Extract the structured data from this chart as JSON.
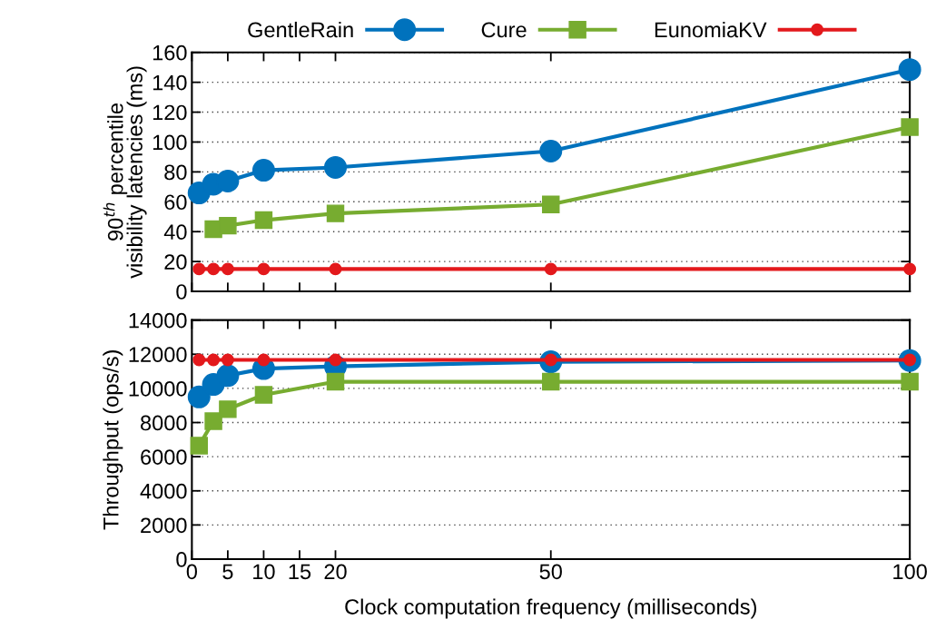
{
  "chart_data": [
    {
      "type": "line",
      "ylabel": "90$^{th}$ percentile\nvisibility latencies (ms)",
      "x": [
        1,
        3,
        5,
        10,
        20,
        50,
        100
      ],
      "xlim": [
        0,
        100
      ],
      "xticks": [
        0,
        5,
        10,
        15,
        20,
        50,
        100
      ],
      "ylim": [
        0,
        160
      ],
      "yticks": [
        0,
        20,
        40,
        60,
        80,
        100,
        120,
        140,
        160
      ],
      "tick_labels": "y",
      "grid": "y",
      "legend": "top",
      "line_style": "solid",
      "series": [
        {
          "name": "GentleRain",
          "color": "#0072bd",
          "marker": "circle",
          "values": [
            65.9,
            71.8,
            73.9,
            81.1,
            83,
            93.9,
            148.5
          ]
        },
        {
          "name": "Cure",
          "color": "#77ac30",
          "marker": "square",
          "values": [
            null,
            41.7,
            44,
            47.7,
            52.2,
            58.2,
            110
          ]
        },
        {
          "name": "EunomiaKV",
          "color": "#e3191c",
          "marker": "circle",
          "values": [
            15,
            15,
            15,
            15,
            15,
            15,
            15
          ]
        }
      ]
    },
    {
      "type": "line",
      "ylabel": "Throughput (ops/s)",
      "xlabel": "Clock computation frequency (milliseconds)",
      "x": [
        1,
        3,
        5,
        10,
        20,
        50,
        100
      ],
      "xlim": [
        0,
        100
      ],
      "xticks": [
        0,
        5,
        10,
        15,
        20,
        50,
        100
      ],
      "ylim": [
        0,
        14000
      ],
      "yticks": [
        0,
        2000,
        4000,
        6000,
        8000,
        10000,
        12000,
        14000
      ],
      "grid": "y",
      "line_style": "solid",
      "series": [
        {
          "color": "#0072bd",
          "marker": "circle",
          "values": [
            9500,
            10230,
            10750,
            11160,
            11290,
            11560,
            11630
          ]
        },
        {
          "color": "#77ac30",
          "marker": "square",
          "values": [
            6650,
            8080,
            8780,
            9620,
            10390,
            10390,
            10390
          ]
        },
        {
          "color": "#e3191c",
          "marker": "circle",
          "values": [
            11670,
            11670,
            11670,
            11670,
            11670,
            11670,
            11670
          ]
        }
      ]
    }
  ]
}
